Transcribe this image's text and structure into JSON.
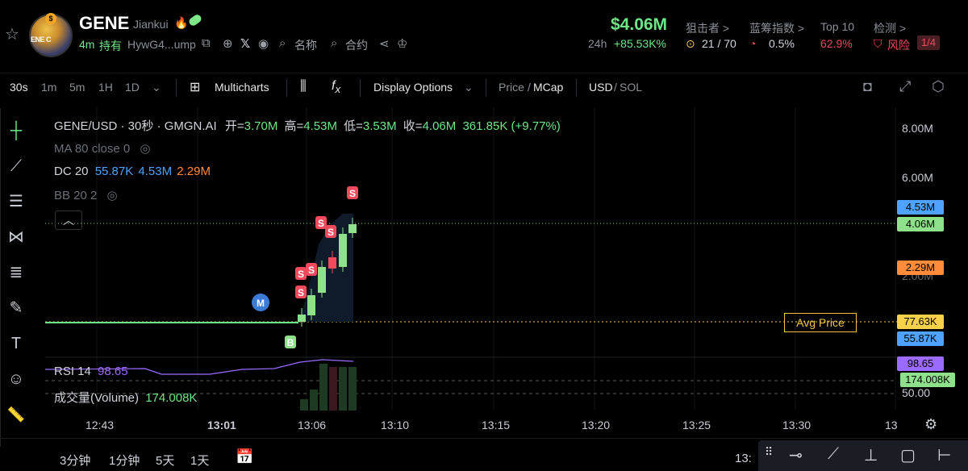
{
  "header": {
    "token_name": "GENE",
    "creator": "Jiankui",
    "age": "4m",
    "hold_label": "持有",
    "address": "HywG4...ump",
    "search_name_label": "名称",
    "search_contract_label": "合约",
    "price": "$4.06M",
    "change_period": "24h",
    "change_value": "+85.53K%",
    "stats": [
      {
        "label": "狙击者 >",
        "value": "21 / 70"
      },
      {
        "label": "蓝筹指数 >",
        "value": "0.5%"
      },
      {
        "label": "Top 10",
        "value": "62.9%"
      },
      {
        "label": "检测 >",
        "value": "风险",
        "badge": "1/4"
      }
    ]
  },
  "toolbar": {
    "intervals": [
      "30s",
      "1m",
      "5m",
      "1H",
      "1D"
    ],
    "multicharts_label": "Multicharts",
    "display_options_label": "Display Options",
    "price_label": "Price",
    "mcap_label": "MCap",
    "usd_label": "USD",
    "sol_label": "SOL"
  },
  "legend": {
    "symbol": "GENE/USD · 30秒 · GMGN.AI",
    "open_lbl": "开=",
    "open": "3.70M",
    "high_lbl": "高=",
    "high": "4.53M",
    "low_lbl": "低=",
    "low": "3.53M",
    "close_lbl": "收=",
    "close": "4.06M",
    "change": "361.85K (+9.77%)",
    "ma": "MA 80 close 0",
    "dc_name": "DC 20",
    "dc_v1": "55.87K",
    "dc_v2": "4.53M",
    "dc_v3": "2.29M",
    "bb": "BB 20 2",
    "rsi_name": "RSI 14",
    "rsi_val": "98.65",
    "vol_name": "成交量(Volume)",
    "vol_val": "174.008K"
  },
  "price_axis": [
    "8.00M",
    "6.00M",
    "2.00M",
    "50.00"
  ],
  "price_labels": {
    "high": "4.53M",
    "close": "4.06M",
    "dc_mid": "2.29M",
    "avg": "77.63K",
    "dc_low": "55.87K",
    "rsi": "98.65",
    "vol": "174.008K"
  },
  "avg_price_label": "Avg Price",
  "time_axis": [
    "12:43",
    "13:01",
    "13:06",
    "13:10",
    "13:15",
    "13:20",
    "13:25",
    "13:30",
    "13"
  ],
  "markers": {
    "sell": "S",
    "buy": "B",
    "migrate": "M"
  },
  "bottom": {
    "ranges": [
      "3分钟",
      "1分钟",
      "5天",
      "1天"
    ],
    "clock": "13:"
  },
  "colors": {
    "green": "#6ee787",
    "red": "#f2495c",
    "accent": "#2962ff",
    "avg": "#f0c24b"
  }
}
